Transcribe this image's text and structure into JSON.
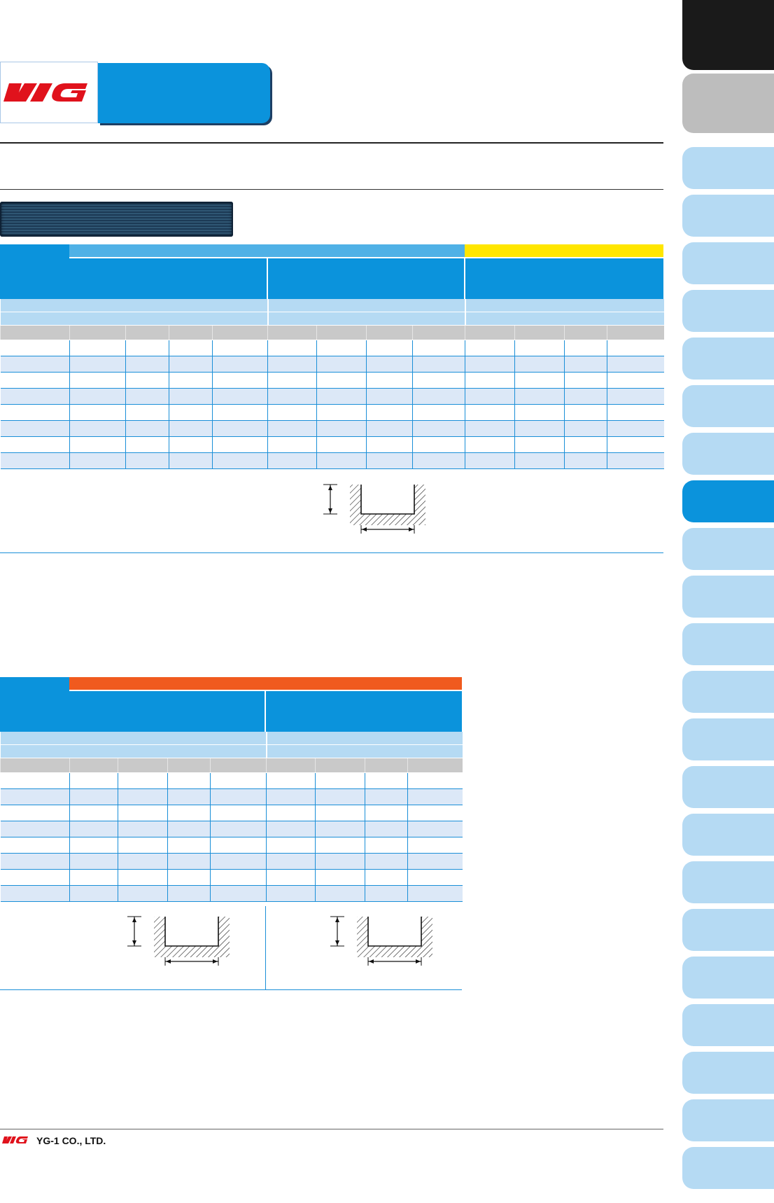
{
  "brand": {
    "logo_text": "YG",
    "company": "YG-1 CO., LTD."
  },
  "colors": {
    "accent_blue": "#0b93dc",
    "light_blue": "#b5daf3",
    "row_blue": "#dce8f7",
    "yellow": "#ffe600",
    "orange": "#f05a1e",
    "logo_red": "#e0121c"
  },
  "side_tabs": [
    {
      "state": "black"
    },
    {
      "state": "gray"
    },
    {
      "state": "light"
    },
    {
      "state": "light"
    },
    {
      "state": "light"
    },
    {
      "state": "light"
    },
    {
      "state": "light"
    },
    {
      "state": "light"
    },
    {
      "state": "light"
    },
    {
      "state": "selected"
    },
    {
      "state": "light"
    },
    {
      "state": "light"
    },
    {
      "state": "light"
    },
    {
      "state": "light"
    },
    {
      "state": "light"
    },
    {
      "state": "light"
    },
    {
      "state": "light"
    },
    {
      "state": "light"
    },
    {
      "state": "light"
    },
    {
      "state": "light"
    },
    {
      "state": "light"
    },
    {
      "state": "light"
    },
    {
      "state": "light"
    },
    {
      "state": "light"
    }
  ],
  "table1": {
    "data_rows": 8,
    "columns": 13
  },
  "table2": {
    "data_rows": 8,
    "columns": 9
  },
  "diagram_icons": [
    "slot-depth-diagram-icon",
    "slot-width-diagram-icon"
  ]
}
